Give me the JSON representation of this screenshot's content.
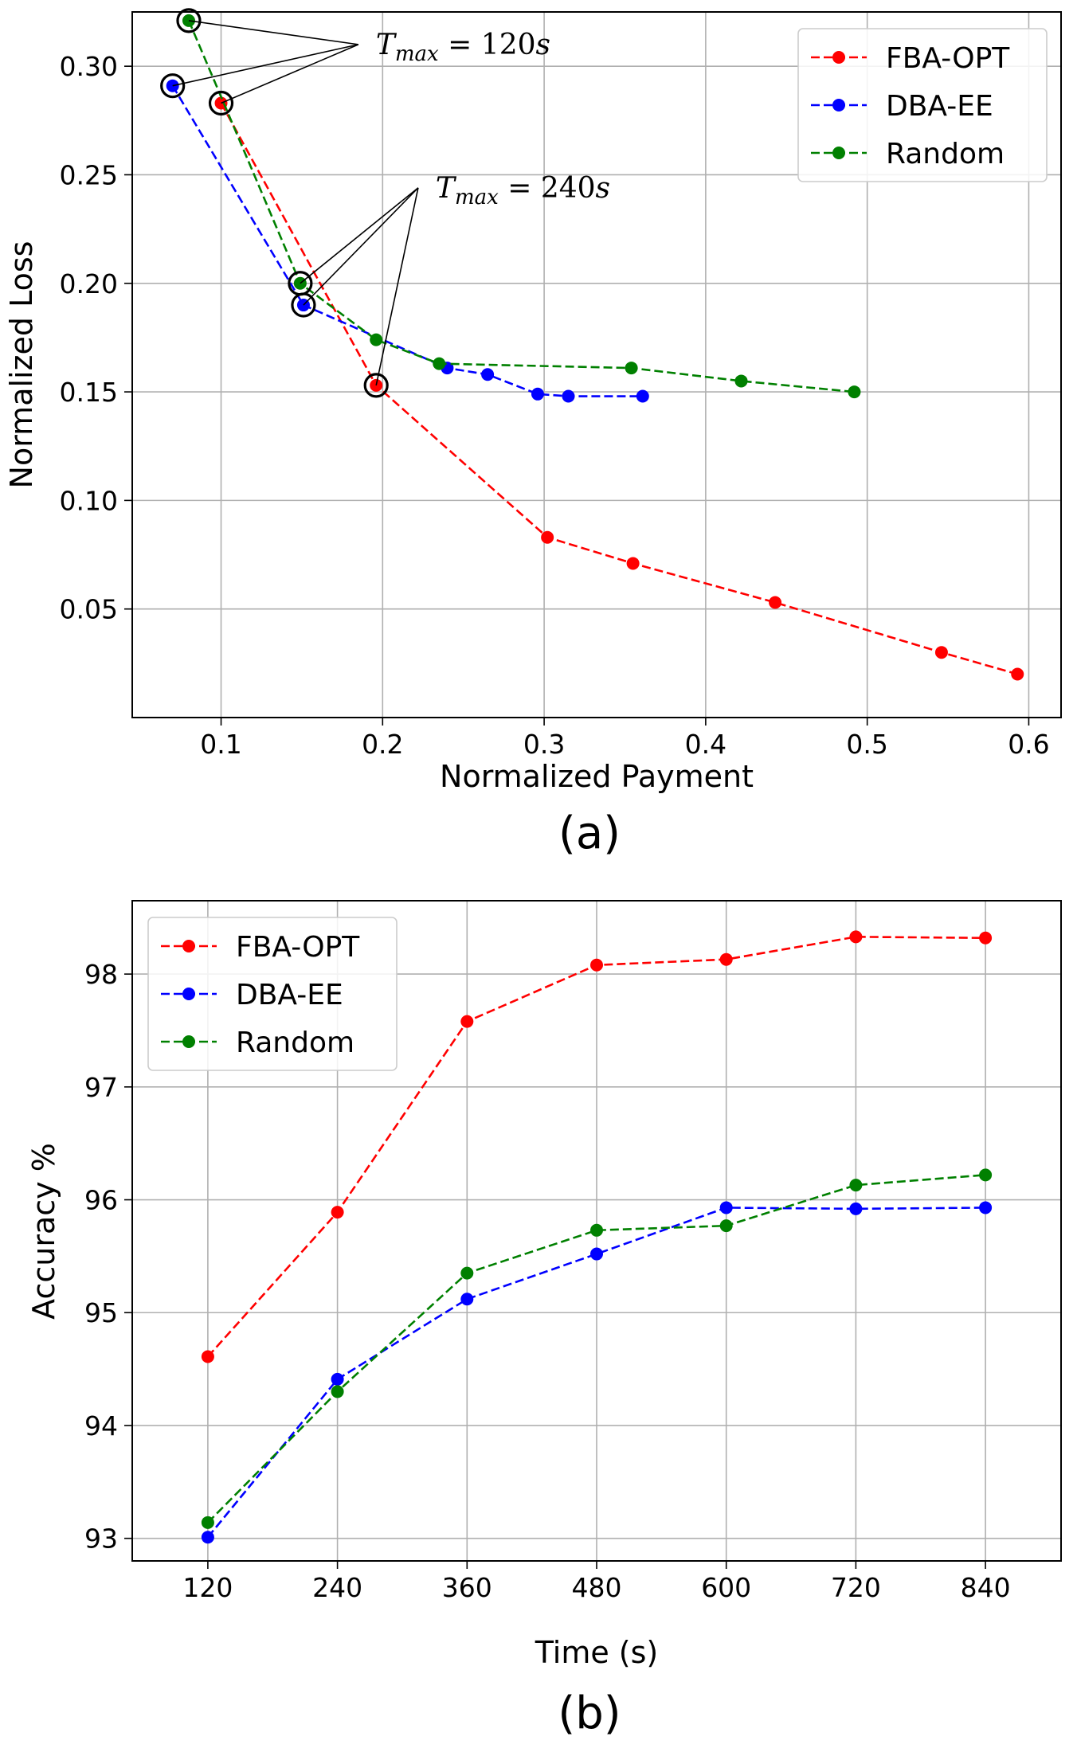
{
  "chart_data": [
    {
      "id": "a",
      "type": "line",
      "panel_label": "(a)",
      "xlabel": "Normalized Payment",
      "ylabel": "Normalized Loss",
      "xlim": [
        0.045,
        0.62
      ],
      "ylim": [
        0.0,
        0.325
      ],
      "xticks": [
        0.1,
        0.2,
        0.3,
        0.4,
        0.5,
        0.6
      ],
      "xtick_labels": [
        "0.1",
        "0.2",
        "0.3",
        "0.4",
        "0.5",
        "0.6"
      ],
      "yticks": [
        0.05,
        0.1,
        0.15,
        0.2,
        0.25,
        0.3
      ],
      "ytick_labels": [
        "0.05",
        "0.10",
        "0.15",
        "0.20",
        "0.25",
        "0.30"
      ],
      "grid": true,
      "legend_position": "top-right",
      "series": [
        {
          "name": "FBA-OPT",
          "color": "#ff0000",
          "x": [
            0.1,
            0.196,
            0.302,
            0.355,
            0.443,
            0.546,
            0.593
          ],
          "y": [
            0.283,
            0.153,
            0.083,
            0.071,
            0.053,
            0.03,
            0.02
          ]
        },
        {
          "name": "DBA-EE",
          "color": "#0000ff",
          "x": [
            0.07,
            0.151,
            0.24,
            0.265,
            0.296,
            0.315,
            0.361
          ],
          "y": [
            0.291,
            0.19,
            0.161,
            0.158,
            0.149,
            0.148,
            0.148
          ]
        },
        {
          "name": "Random",
          "color": "#008000",
          "x": [
            0.08,
            0.149,
            0.196,
            0.235,
            0.354,
            0.422,
            0.492
          ],
          "y": [
            0.321,
            0.2,
            0.174,
            0.163,
            0.161,
            0.155,
            0.15
          ]
        }
      ],
      "highlighted_points": [
        {
          "x": 0.08,
          "y": 0.321,
          "group": "120"
        },
        {
          "x": 0.07,
          "y": 0.291,
          "group": "120"
        },
        {
          "x": 0.1,
          "y": 0.283,
          "group": "120"
        },
        {
          "x": 0.149,
          "y": 0.2,
          "group": "240"
        },
        {
          "x": 0.151,
          "y": 0.19,
          "group": "240"
        },
        {
          "x": 0.196,
          "y": 0.153,
          "group": "240"
        }
      ],
      "annotations": [
        {
          "group": "120",
          "var": "T",
          "sub": "max",
          "rest": " = 120",
          "unit": "s",
          "anchor_x": 0.185,
          "anchor_y": 0.31
        },
        {
          "group": "240",
          "var": "T",
          "sub": "max",
          "rest": " = 240",
          "unit": "s",
          "anchor_x": 0.222,
          "anchor_y": 0.244
        }
      ]
    },
    {
      "id": "b",
      "type": "line",
      "panel_label": "(b)",
      "xlabel": "Time (s)",
      "ylabel": "Accuracy %",
      "xlim": [
        50,
        910
      ],
      "ylim": [
        92.8,
        98.65
      ],
      "xticks": [
        120,
        240,
        360,
        480,
        600,
        720,
        840
      ],
      "xtick_labels": [
        "120",
        "240",
        "360",
        "480",
        "600",
        "720",
        "840"
      ],
      "yticks": [
        93,
        94,
        95,
        96,
        97,
        98
      ],
      "ytick_labels": [
        "93",
        "94",
        "95",
        "96",
        "97",
        "98"
      ],
      "grid": true,
      "legend_position": "top-left",
      "series": [
        {
          "name": "FBA-OPT",
          "color": "#ff0000",
          "x": [
            120,
            240,
            360,
            480,
            600,
            720,
            840
          ],
          "y": [
            94.61,
            95.89,
            97.58,
            98.08,
            98.13,
            98.33,
            98.32
          ]
        },
        {
          "name": "DBA-EE",
          "color": "#0000ff",
          "x": [
            120,
            240,
            360,
            480,
            600,
            720,
            840
          ],
          "y": [
            93.01,
            94.41,
            95.12,
            95.52,
            95.93,
            95.92,
            95.93
          ]
        },
        {
          "name": "Random",
          "color": "#008000",
          "x": [
            120,
            240,
            360,
            480,
            600,
            720,
            840
          ],
          "y": [
            93.14,
            94.3,
            95.35,
            95.73,
            95.77,
            96.13,
            96.22
          ]
        }
      ]
    }
  ]
}
